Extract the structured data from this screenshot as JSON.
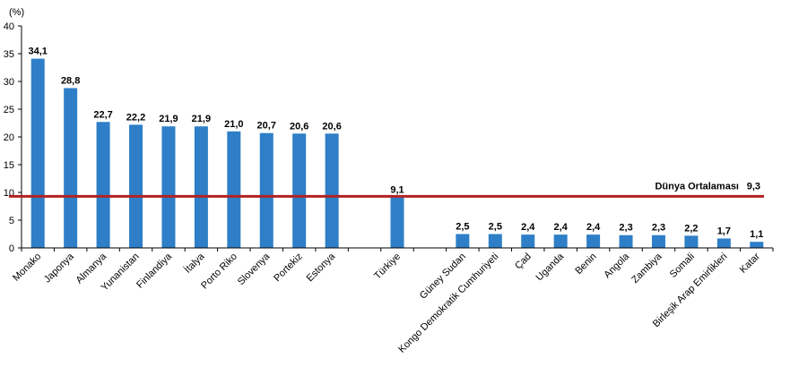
{
  "chart_data": {
    "type": "bar",
    "ylabel": "(%)",
    "ylim": [
      0,
      40
    ],
    "yticks": [
      0,
      5,
      10,
      15,
      20,
      25,
      30,
      35,
      40
    ],
    "grid": false,
    "categories": [
      "Monako",
      "Japonya",
      "Almanya",
      "Yunanistan",
      "Finlandiya",
      "İtalya",
      "Porto Riko",
      "Slovenya",
      "Portekiz",
      "Estonya",
      "",
      "Türkiye",
      "",
      "Güney Sudan",
      "Kongo Demokratik Cumhuriyeti",
      "Çad",
      "Uganda",
      "Benin",
      "Angola",
      "Zambiya",
      "Somali",
      "Birleşik Arap Emirlikleri",
      "Katar"
    ],
    "values": [
      34.1,
      28.8,
      22.7,
      22.2,
      21.9,
      21.9,
      21.0,
      20.7,
      20.6,
      20.6,
      null,
      9.1,
      null,
      2.5,
      2.5,
      2.4,
      2.4,
      2.4,
      2.3,
      2.3,
      2.2,
      1.7,
      1.1
    ],
    "value_labels": [
      "34,1",
      "28,8",
      "22,7",
      "22,2",
      "21,9",
      "21,9",
      "21,0",
      "20,7",
      "20,6",
      "20,6",
      "",
      "9,1",
      "",
      "2,5",
      "2,5",
      "2,4",
      "2,4",
      "2,4",
      "2,3",
      "2,3",
      "2,2",
      "1,7",
      "1,1"
    ],
    "reference_line": {
      "label": "Dünya Ortalaması",
      "value": 9.3,
      "value_label": "9,3",
      "color": "#b22222"
    },
    "bar_color": "#2e7fc7"
  }
}
